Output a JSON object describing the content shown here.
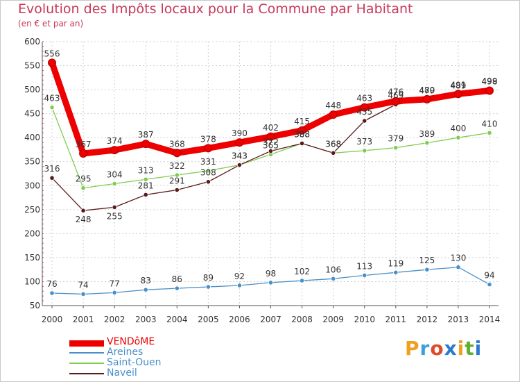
{
  "title": "Evolution des Impôts locaux pour la Commune par Habitant",
  "subtitle": "(en € et par an)",
  "brand": {
    "letters": [
      "P",
      "r",
      "o",
      "x",
      "i",
      "t",
      "i"
    ],
    "colors": [
      "#f0a020",
      "#3aa0dc",
      "#e04a2a",
      "#2a7ad0",
      "#f0a020",
      "#60b030",
      "#2a7ad0"
    ]
  },
  "chart_data": {
    "type": "line",
    "title": "Evolution des Impôts locaux pour la Commune par Habitant",
    "subtitle": "(en € et par an)",
    "xlabel": "",
    "ylabel": "",
    "ylim": [
      50,
      600
    ],
    "yticks": [
      50,
      100,
      150,
      200,
      250,
      300,
      350,
      400,
      450,
      500,
      550,
      600
    ],
    "grid": true,
    "categories": [
      "2000",
      "2001",
      "2002",
      "2003",
      "2004",
      "2005",
      "2006",
      "2007",
      "2008",
      "2009",
      "2010",
      "2011",
      "2012",
      "2013",
      "2014"
    ],
    "series": [
      {
        "name": "VENDôME",
        "color": "#ee0000",
        "marker": "#ee0000",
        "values": [
          556,
          367,
          374,
          387,
          368,
          378,
          390,
          402,
          415,
          448,
          463,
          476,
          480,
          491,
          498
        ],
        "label_offsets": [
          -1,
          -1,
          -1,
          -1,
          -1,
          -1,
          -1,
          -1,
          -1,
          -1,
          -1,
          -1,
          -1,
          -1,
          -1
        ]
      },
      {
        "name": "Areines",
        "color": "#4a90c8",
        "marker": "#4a90c8",
        "values": [
          76,
          74,
          77,
          83,
          86,
          89,
          92,
          98,
          102,
          106,
          113,
          119,
          125,
          130,
          94
        ],
        "label_offsets": [
          -1,
          -1,
          -1,
          -1,
          -1,
          -1,
          -1,
          -1,
          -1,
          -1,
          -1,
          -1,
          -1,
          -1,
          -1
        ]
      },
      {
        "name": "Saint-Ouen",
        "color": "#80cc50",
        "marker": "#80cc50",
        "values": [
          463,
          295,
          304,
          313,
          322,
          331,
          343,
          365,
          388,
          368,
          373,
          379,
          389,
          400,
          410
        ],
        "label_offsets": [
          -1,
          -1,
          -1,
          -1,
          -1,
          -1,
          -1,
          -1,
          -1,
          -1,
          -1,
          -1,
          -1,
          -1,
          -1
        ]
      },
      {
        "name": "Naveil",
        "color": "#5a1a1a",
        "marker": "#5a1a1a",
        "values": [
          316,
          248,
          255,
          281,
          291,
          308,
          343,
          372,
          388,
          368,
          435,
          469,
          479,
          489,
          499
        ],
        "label_offsets": [
          -1,
          1,
          1,
          -1,
          -1,
          -1,
          -1,
          -1,
          -1,
          -1,
          -1,
          -1,
          -1,
          -1,
          -1
        ]
      }
    ]
  }
}
